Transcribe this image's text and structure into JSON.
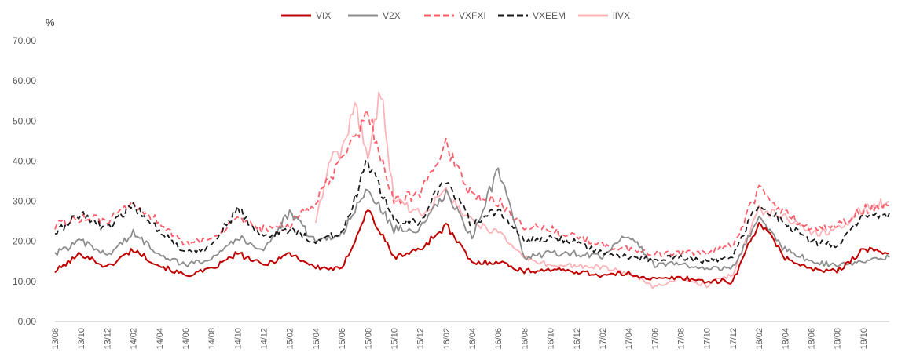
{
  "chart_data": {
    "type": "line",
    "unit": "%",
    "ylim": [
      0,
      70
    ],
    "y_ticks": [
      "0.00",
      "10.00",
      "20.00",
      "30.00",
      "40.00",
      "50.00",
      "60.00",
      "70.00"
    ],
    "x_ticks": [
      "13/08",
      "13/10",
      "13/12",
      "14/02",
      "14/04",
      "14/06",
      "14/08",
      "14/10",
      "14/12",
      "15/02",
      "15/04",
      "15/06",
      "15/08",
      "15/10",
      "15/12",
      "16/02",
      "16/04",
      "16/06",
      "16/08",
      "16/10",
      "16/12",
      "17/02",
      "17/04",
      "17/06",
      "17/08",
      "17/10",
      "17/12",
      "18/02",
      "18/04",
      "18/06",
      "18/08",
      "18/10"
    ],
    "x_range": [
      "13/08",
      "18/12"
    ],
    "grid": false,
    "legend_position": "top",
    "series": [
      {
        "name": "VIX",
        "color": "#c00000",
        "dash": "solid",
        "x": [
          "13/08",
          "13/10",
          "13/12",
          "14/02",
          "14/04",
          "14/06",
          "14/08",
          "14/10",
          "14/12",
          "15/02",
          "15/04",
          "15/06",
          "15/08",
          "15/10",
          "15/12",
          "16/02",
          "16/04",
          "16/06",
          "16/08",
          "16/10",
          "16/12",
          "17/02",
          "17/04",
          "17/06",
          "17/08",
          "17/10",
          "17/12",
          "18/02",
          "18/04",
          "18/06",
          "18/08",
          "18/10",
          "18/12"
        ],
        "values": [
          12.5,
          17.0,
          13.5,
          18.0,
          14.0,
          11.5,
          13.0,
          17.0,
          14.0,
          17.0,
          13.5,
          13.0,
          28.0,
          16.0,
          18.0,
          24.0,
          14.5,
          15.0,
          12.5,
          13.0,
          12.5,
          11.5,
          12.0,
          10.5,
          11.0,
          10.0,
          10.0,
          25.0,
          16.0,
          13.0,
          12.5,
          18.0,
          17.0
        ]
      },
      {
        "name": "V2X",
        "color": "#8c8c8c",
        "dash": "solid",
        "x": [
          "13/08",
          "13/10",
          "13/12",
          "14/02",
          "14/04",
          "14/06",
          "14/08",
          "14/10",
          "14/12",
          "15/02",
          "15/04",
          "15/06",
          "15/08",
          "15/10",
          "15/12",
          "16/02",
          "16/04",
          "16/06",
          "16/08",
          "16/10",
          "16/12",
          "17/02",
          "17/04",
          "17/06",
          "17/08",
          "17/10",
          "17/12",
          "18/02",
          "18/04",
          "18/06",
          "18/08",
          "18/10",
          "18/12"
        ],
        "values": [
          17.0,
          20.0,
          16.5,
          22.0,
          17.0,
          14.0,
          16.0,
          21.0,
          18.0,
          27.0,
          20.0,
          22.0,
          33.0,
          23.0,
          23.0,
          32.0,
          21.0,
          38.0,
          16.0,
          17.0,
          17.0,
          16.0,
          22.0,
          14.0,
          14.5,
          13.0,
          13.5,
          26.0,
          18.0,
          15.0,
          14.0,
          15.0,
          16.0
        ]
      },
      {
        "name": "VXFXI",
        "color": "#ff5c6a",
        "dash": "dash",
        "x": [
          "13/08",
          "13/10",
          "13/12",
          "14/02",
          "14/04",
          "14/06",
          "14/08",
          "14/10",
          "14/12",
          "15/02",
          "15/04",
          "15/06",
          "15/08",
          "15/10",
          "15/12",
          "16/02",
          "16/04",
          "16/06",
          "16/08",
          "16/10",
          "16/12",
          "17/02",
          "17/04",
          "17/06",
          "17/08",
          "17/10",
          "17/12",
          "18/02",
          "18/04",
          "18/06",
          "18/08",
          "18/10",
          "18/12"
        ],
        "values": [
          24.0,
          26.0,
          25.0,
          29.0,
          25.0,
          19.0,
          21.0,
          25.0,
          23.0,
          24.0,
          30.0,
          40.0,
          52.0,
          30.0,
          32.0,
          44.0,
          31.0,
          30.0,
          24.0,
          23.0,
          21.0,
          19.0,
          18.0,
          17.0,
          17.0,
          17.0,
          19.0,
          33.0,
          27.0,
          23.0,
          24.0,
          28.0,
          29.0
        ]
      },
      {
        "name": "VXEEM",
        "color": "#1a1a1a",
        "dash": "dash",
        "x": [
          "13/08",
          "13/10",
          "13/12",
          "14/02",
          "14/04",
          "14/06",
          "14/08",
          "14/10",
          "14/12",
          "15/02",
          "15/04",
          "15/06",
          "15/08",
          "15/10",
          "15/12",
          "16/02",
          "16/04",
          "16/06",
          "16/08",
          "16/10",
          "16/12",
          "17/02",
          "17/04",
          "17/06",
          "17/08",
          "17/10",
          "17/12",
          "18/02",
          "18/04",
          "18/06",
          "18/08",
          "18/10",
          "18/12"
        ],
        "values": [
          22.0,
          27.0,
          23.0,
          29.0,
          23.0,
          17.0,
          19.0,
          28.0,
          21.0,
          23.0,
          20.0,
          22.0,
          40.0,
          25.0,
          25.0,
          36.0,
          24.0,
          28.0,
          20.0,
          21.0,
          20.0,
          17.0,
          16.0,
          15.5,
          16.0,
          15.0,
          16.0,
          30.0,
          24.0,
          20.0,
          19.0,
          26.0,
          27.0
        ]
      },
      {
        "name": "iIVX",
        "color": "#ffb3b8",
        "dash": "solid",
        "x": [
          "15/04",
          "15/05",
          "15/06",
          "15/07",
          "15/08",
          "15/09",
          "15/10",
          "15/12",
          "16/02",
          "16/04",
          "16/06",
          "16/08",
          "16/10",
          "16/12",
          "17/02",
          "17/04",
          "17/06",
          "17/08",
          "17/10",
          "17/12",
          "18/02",
          "18/04",
          "18/06",
          "18/08",
          "18/10",
          "18/12"
        ],
        "values": [
          24.0,
          40.0,
          42.0,
          55.0,
          40.0,
          58.0,
          30.0,
          27.0,
          32.0,
          25.0,
          22.0,
          16.0,
          14.0,
          14.0,
          13.5,
          12.0,
          8.5,
          11.0,
          9.0,
          12.0,
          28.0,
          26.0,
          22.0,
          23.0,
          28.0,
          30.0
        ]
      }
    ]
  }
}
